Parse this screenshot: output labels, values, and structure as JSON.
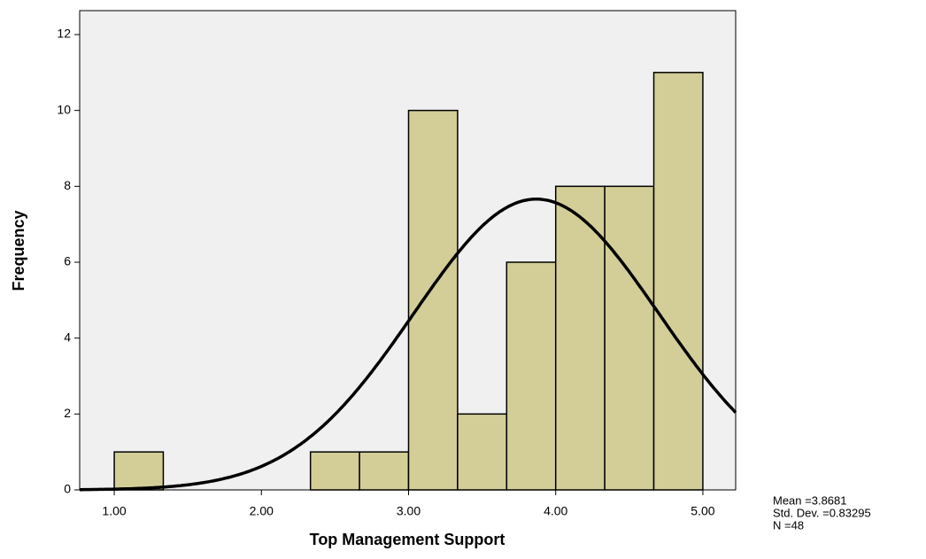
{
  "chart_data": {
    "type": "histogram",
    "x_label": "Top Management Support",
    "y_label": "Frequency",
    "bins": [
      1,
      1.3333,
      1.6667,
      2,
      2.3333,
      2.6667,
      3,
      3.3333,
      3.6667,
      4,
      4.3333,
      4.6667,
      5
    ],
    "values": [
      1,
      0,
      0,
      0,
      1,
      1,
      10,
      2,
      6,
      8,
      8,
      11
    ],
    "color": "#d3ce97",
    "plot_background": "#f0f0f0",
    "xlim": [
      0.765,
      5.223
    ],
    "ylim": [
      0,
      12.63
    ],
    "xticks": [
      {
        "value": 1,
        "label": "1.00"
      },
      {
        "value": 2,
        "label": "2.00"
      },
      {
        "value": 3,
        "label": "3.00"
      },
      {
        "value": 4,
        "label": "4.00"
      },
      {
        "value": 5,
        "label": "5.00"
      }
    ],
    "yticks": [
      0,
      2,
      4,
      6,
      8,
      10,
      12
    ],
    "stats": [
      {
        "value": 3.8681,
        "label": "Mean =3.8681"
      },
      {
        "value": 0.83295,
        "label": "Std. Dev. =0.83295"
      },
      {
        "value": 48,
        "label": "N =48"
      }
    ]
  }
}
